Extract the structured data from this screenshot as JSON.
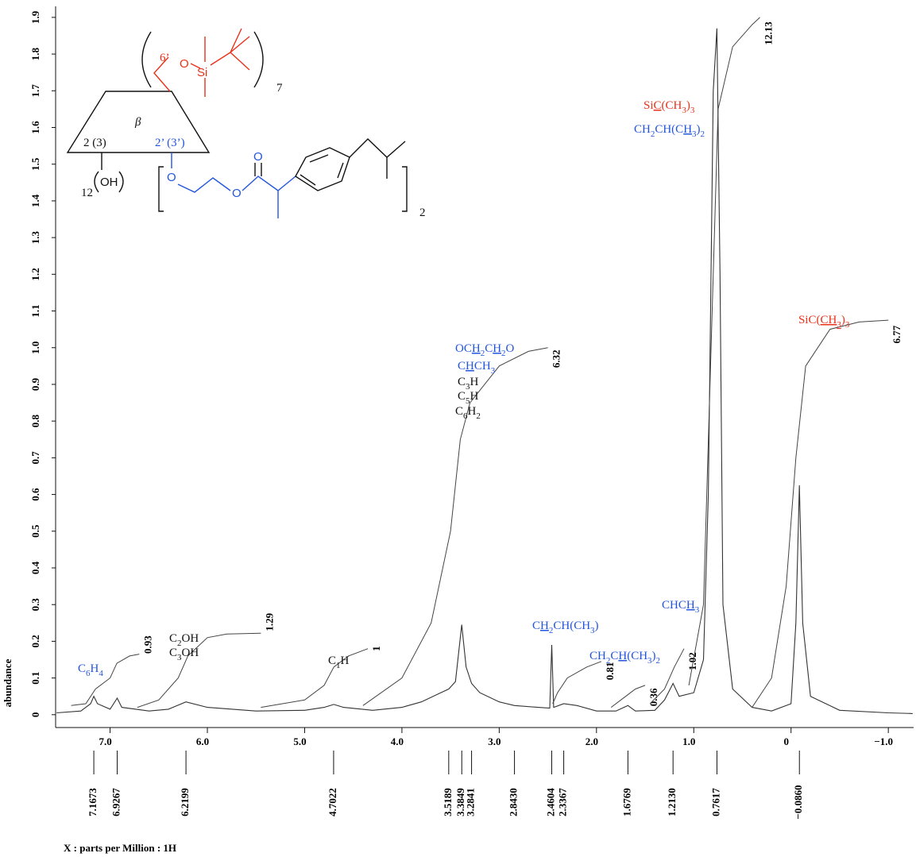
{
  "chart_data": {
    "type": "nmr",
    "x_label": "X : parts per Million : 1H",
    "y_label": "abundance",
    "xlim": [
      7.56,
      -1.26
    ],
    "ylim": [
      -0.035,
      1.93
    ],
    "xticks": [
      {
        "value": 7,
        "label": "7.0"
      },
      {
        "value": 6,
        "label": "6.0"
      },
      {
        "value": 5,
        "label": "5.0"
      },
      {
        "value": 4,
        "label": "4.0"
      },
      {
        "value": 3,
        "label": "3.0"
      },
      {
        "value": 2,
        "label": "2.0"
      },
      {
        "value": 1,
        "label": "1.0"
      },
      0,
      {
        "value": -1,
        "label": "−1.0"
      }
    ],
    "yticks": [
      0,
      0.1,
      0.2,
      0.3,
      0.4,
      0.5,
      0.6,
      0.7,
      0.8,
      0.9,
      {
        "value": 1,
        "label": "1.0"
      },
      1.1,
      1.2,
      1.3,
      1.4,
      1.5,
      1.6,
      1.7,
      1.8,
      1.9
    ],
    "spectrum": {
      "color": "#333333",
      "x": [
        7.55,
        7.3,
        7.2,
        7.167,
        7.13,
        7.0,
        6.927,
        6.88,
        6.6,
        6.4,
        6.22,
        6.0,
        5.5,
        5.0,
        4.8,
        4.7,
        4.6,
        4.3,
        4.0,
        3.8,
        3.6,
        3.519,
        3.45,
        3.385,
        3.34,
        3.284,
        3.2,
        3.0,
        2.843,
        2.6,
        2.48,
        2.46,
        2.44,
        2.337,
        2.2,
        2.0,
        1.8,
        1.677,
        1.6,
        1.4,
        1.3,
        1.213,
        1.15,
        1.0,
        0.9,
        0.85,
        0.8,
        0.762,
        0.73,
        0.7,
        0.6,
        0.4,
        0.2,
        0.0,
        -0.05,
        -0.086,
        -0.12,
        -0.2,
        -0.5,
        -1.0,
        -1.25
      ],
      "values": [
        0.005,
        0.01,
        0.03,
        0.05,
        0.03,
        0.015,
        0.045,
        0.02,
        0.01,
        0.015,
        0.035,
        0.02,
        0.01,
        0.012,
        0.02,
        0.028,
        0.02,
        0.012,
        0.02,
        0.035,
        0.06,
        0.07,
        0.09,
        0.245,
        0.13,
        0.085,
        0.06,
        0.035,
        0.025,
        0.02,
        0.018,
        0.19,
        0.02,
        0.03,
        0.025,
        0.01,
        0.01,
        0.025,
        0.01,
        0.012,
        0.04,
        0.085,
        0.05,
        0.06,
        0.15,
        0.6,
        1.7,
        1.87,
        1.2,
        0.3,
        0.07,
        0.02,
        0.01,
        0.03,
        0.25,
        0.625,
        0.25,
        0.05,
        0.012,
        0.005,
        0.003
      ]
    },
    "integrals": [
      {
        "value": 0.93,
        "x": [
          7.4,
          7.25,
          7.15,
          7.0,
          6.93,
          6.8,
          6.7
        ],
        "values": [
          0.025,
          0.03,
          0.07,
          0.1,
          0.14,
          0.16,
          0.165
        ]
      },
      {
        "value": 1.29,
        "x": [
          6.72,
          6.5,
          6.3,
          6.2,
          6.0,
          5.8,
          5.45
        ],
        "values": [
          0.02,
          0.04,
          0.1,
          0.16,
          0.21,
          0.22,
          0.222
        ]
      },
      {
        "value": 1,
        "x": [
          5.45,
          5.0,
          4.8,
          4.7,
          4.55,
          4.35
        ],
        "values": [
          0.02,
          0.04,
          0.08,
          0.13,
          0.16,
          0.18
        ]
      },
      {
        "value": 6.32,
        "x": [
          4.4,
          4.0,
          3.7,
          3.5,
          3.4,
          3.3,
          3.0,
          2.7,
          2.5
        ],
        "values": [
          0.025,
          0.1,
          0.25,
          0.5,
          0.75,
          0.85,
          0.95,
          0.99,
          1.0
        ]
      },
      {
        "value": 0.81,
        "x": [
          2.45,
          2.4,
          2.3,
          2.1,
          1.95
        ],
        "values": [
          0.03,
          0.06,
          0.1,
          0.13,
          0.145
        ]
      },
      {
        "value": 0.36,
        "x": [
          1.85,
          1.7,
          1.6,
          1.5
        ],
        "values": [
          0.02,
          0.05,
          0.07,
          0.08
        ]
      },
      {
        "value": 1.02,
        "x": [
          1.45,
          1.3,
          1.2,
          1.1
        ],
        "values": [
          0.03,
          0.07,
          0.13,
          0.18
        ]
      },
      {
        "value": 12.13,
        "x": [
          1.05,
          0.9,
          0.8,
          0.75,
          0.6,
          0.4,
          0.32
        ],
        "values": [
          0.08,
          0.3,
          1.2,
          1.65,
          1.82,
          1.88,
          1.9
        ]
      },
      {
        "value": 6.77,
        "x": [
          0.4,
          0.2,
          0.05,
          -0.05,
          -0.15,
          -0.4,
          -0.7,
          -1.0
        ],
        "values": [
          0.02,
          0.1,
          0.35,
          0.7,
          0.95,
          1.05,
          1.07,
          1.075
        ]
      }
    ],
    "peak_labels": [
      7.1673,
      6.9267,
      6.2199,
      4.7022,
      3.5189,
      3.3849,
      3.2841,
      {
        "value": 2.843,
        "label": "2.8430"
      },
      2.4604,
      2.3367,
      1.6769,
      {
        "value": 1.213,
        "label": "1.2130"
      },
      0.7617,
      {
        "value": -0.086,
        "label": "−0.0860"
      }
    ],
    "annotations": [
      {
        "color": "#2255dd",
        "parts": [
          {
            "text": "C"
          },
          {
            "text": "6",
            "sub": true
          },
          {
            "text": "H"
          },
          {
            "text": "4",
            "sub": true
          }
        ]
      },
      {
        "color": "#111111",
        "parts": [
          {
            "text": "C"
          },
          {
            "text": "2",
            "sub": true
          },
          {
            "text": "OH"
          }
        ]
      },
      {
        "color": "#111111",
        "parts": [
          {
            "text": "C"
          },
          {
            "text": "3",
            "sub": true
          },
          {
            "text": "OH"
          }
        ]
      },
      {
        "color": "#111111",
        "parts": [
          {
            "text": "C"
          },
          {
            "text": "1",
            "sub": true
          },
          {
            "text": "H"
          }
        ]
      },
      {
        "color": "#2255dd",
        "parts": [
          {
            "text": "OC"
          },
          {
            "text": "H",
            "underline": true
          },
          {
            "text": "2",
            "sub": true
          },
          {
            "text": "C"
          },
          {
            "text": "H",
            "underline": true
          },
          {
            "text": "2",
            "sub": true
          },
          {
            "text": "O"
          }
        ]
      },
      {
        "color": "#2255dd",
        "parts": [
          {
            "text": "C"
          },
          {
            "text": "H",
            "underline": true
          },
          {
            "text": "CH"
          },
          {
            "text": "3",
            "sub": true
          }
        ]
      },
      {
        "color": "#111111",
        "parts": [
          {
            "text": "C"
          },
          {
            "text": "3",
            "sub": true
          },
          {
            "text": "H"
          }
        ]
      },
      {
        "color": "#111111",
        "parts": [
          {
            "text": "C"
          },
          {
            "text": "5",
            "sub": true
          },
          {
            "text": "H"
          }
        ]
      },
      {
        "color": "#111111",
        "parts": [
          {
            "text": "C"
          },
          {
            "text": "6",
            "sub": true
          },
          {
            "text": "H"
          },
          {
            "text": "2",
            "sub": true
          }
        ]
      },
      {
        "color": "#2255dd",
        "parts": [
          {
            "text": "C"
          },
          {
            "text": "H",
            "underline": true
          },
          {
            "text": "2",
            "sub": true
          },
          {
            "text": "CH(CH"
          },
          {
            "text": "3",
            "sub": true
          },
          {
            "text": ")"
          }
        ]
      },
      {
        "color": "#2255dd",
        "parts": [
          {
            "text": "CH"
          },
          {
            "text": "2",
            "sub": true
          },
          {
            "text": "C"
          },
          {
            "text": "H",
            "underline": true
          },
          {
            "text": "(CH"
          },
          {
            "text": "3",
            "sub": true
          },
          {
            "text": ")"
          },
          {
            "text": "2",
            "sub": true
          }
        ]
      },
      {
        "color": "#2255dd",
        "parts": [
          {
            "text": "CHC"
          },
          {
            "text": "H",
            "underline": true
          },
          {
            "text": "3",
            "sub": true
          }
        ]
      },
      {
        "color": "#e8321a",
        "parts": [
          {
            "text": "Si"
          },
          {
            "text": "C",
            "underline": true
          },
          {
            "text": "(CH"
          },
          {
            "text": "3",
            "sub": true
          },
          {
            "text": ")"
          },
          {
            "text": "3",
            "sub": true
          }
        ]
      },
      {
        "color": "#2255dd",
        "parts": [
          {
            "text": "CH"
          },
          {
            "text": "2",
            "sub": true
          },
          {
            "text": "CH(C"
          },
          {
            "text": "H",
            "underline": true
          },
          {
            "text": "3",
            "sub": true
          },
          {
            "text": ")"
          },
          {
            "text": "2",
            "sub": true
          }
        ]
      },
      {
        "color": "#e8321a",
        "parts": [
          {
            "text": "SiC("
          },
          {
            "text": "CH",
            "underline": true
          },
          {
            "text": "3",
            "sub": true,
            "underline": true
          },
          {
            "text": ")"
          },
          {
            "text": "3",
            "sub": true
          }
        ]
      }
    ]
  },
  "structure": {
    "six": "6’",
    "o_top": "O",
    "si": "Si",
    "n7": "7",
    "beta": "β",
    "pos2": "2 (3)",
    "pos2p": "2’ (3’)",
    "n12": "12",
    "oh": "OH",
    "o1": "O",
    "o2": "O",
    "o3": "O",
    "o4": "O",
    "n2": "2"
  }
}
